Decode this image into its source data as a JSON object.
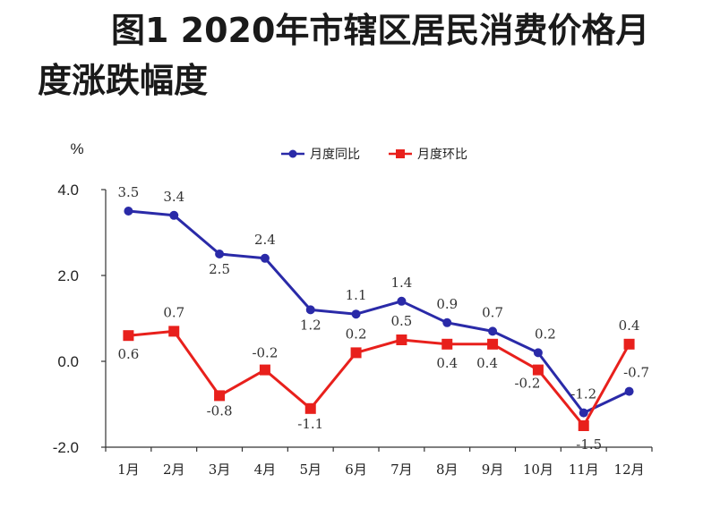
{
  "title_line1": "图1  2020年市辖区居民消费价格月",
  "title_line2": "度涨跌幅度",
  "chart_data": {
    "type": "line",
    "ylabel": "%",
    "ylim": [
      -2.0,
      4.0
    ],
    "yticks": [
      "4.0",
      "2.0",
      "0.0",
      "-2.0"
    ],
    "categories": [
      "1月",
      "2月",
      "3月",
      "4月",
      "5月",
      "6月",
      "7月",
      "8月",
      "9月",
      "10月",
      "11月",
      "12月"
    ],
    "legend_position": "top-center",
    "series": [
      {
        "name": "月度同比",
        "color": "#2a2aa8",
        "marker": "circle",
        "values": [
          3.5,
          3.4,
          2.5,
          2.4,
          1.2,
          1.1,
          1.4,
          0.9,
          0.7,
          0.2,
          -1.2,
          -0.7
        ],
        "labels": [
          "3.5",
          "3.4",
          "2.5",
          "2.4",
          "1.2",
          "1.1",
          "1.4",
          "0.9",
          "0.7",
          "0.2",
          "-1.2",
          "-0.7"
        ]
      },
      {
        "name": "月度环比",
        "color": "#e8201c",
        "marker": "square",
        "values": [
          0.6,
          0.7,
          -0.8,
          -0.2,
          -1.1,
          0.2,
          0.5,
          0.4,
          0.4,
          -0.2,
          -1.5,
          0.4
        ],
        "labels": [
          "0.6",
          "0.7",
          "-0.8",
          "-0.2",
          "-1.1",
          "0.2",
          "0.5",
          "0.4",
          "0.4",
          "-0.2",
          "-1.5",
          "0.4"
        ]
      }
    ]
  }
}
